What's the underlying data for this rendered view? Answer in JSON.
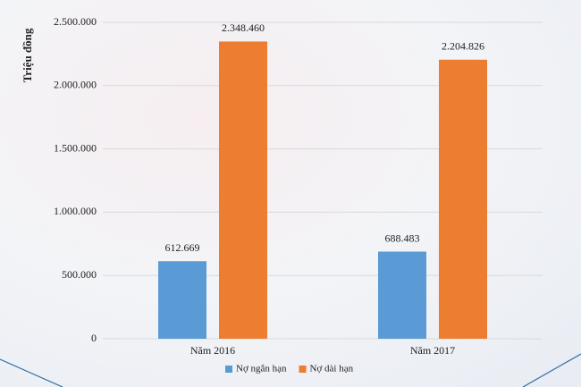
{
  "chart_data": {
    "type": "bar",
    "y_label": "Triệu đồng",
    "categories": [
      "Năm 2016",
      "Năm 2017"
    ],
    "series": [
      {
        "name": "Nợ ngắn hạn",
        "color": "#5b9bd5",
        "values": [
          612669,
          688483
        ],
        "value_labels": [
          "612.669",
          "688.483"
        ]
      },
      {
        "name": "Nợ dài hạn",
        "color": "#ed7d31",
        "values": [
          2348460,
          2204826
        ],
        "value_labels": [
          "2.348.460",
          "2.204.826"
        ]
      }
    ],
    "ylim": [
      0,
      2500000
    ],
    "yticks": [
      0,
      {
        "value": 500000,
        "label": "500.000"
      },
      {
        "value": 1000000,
        "label": "1.000.000"
      },
      {
        "value": 1500000,
        "label": "1.500.000"
      },
      {
        "value": 2000000,
        "label": "2.000.000"
      },
      {
        "value": 2500000,
        "label": "2.500.000"
      }
    ],
    "grid": true,
    "legend": "bottom"
  }
}
